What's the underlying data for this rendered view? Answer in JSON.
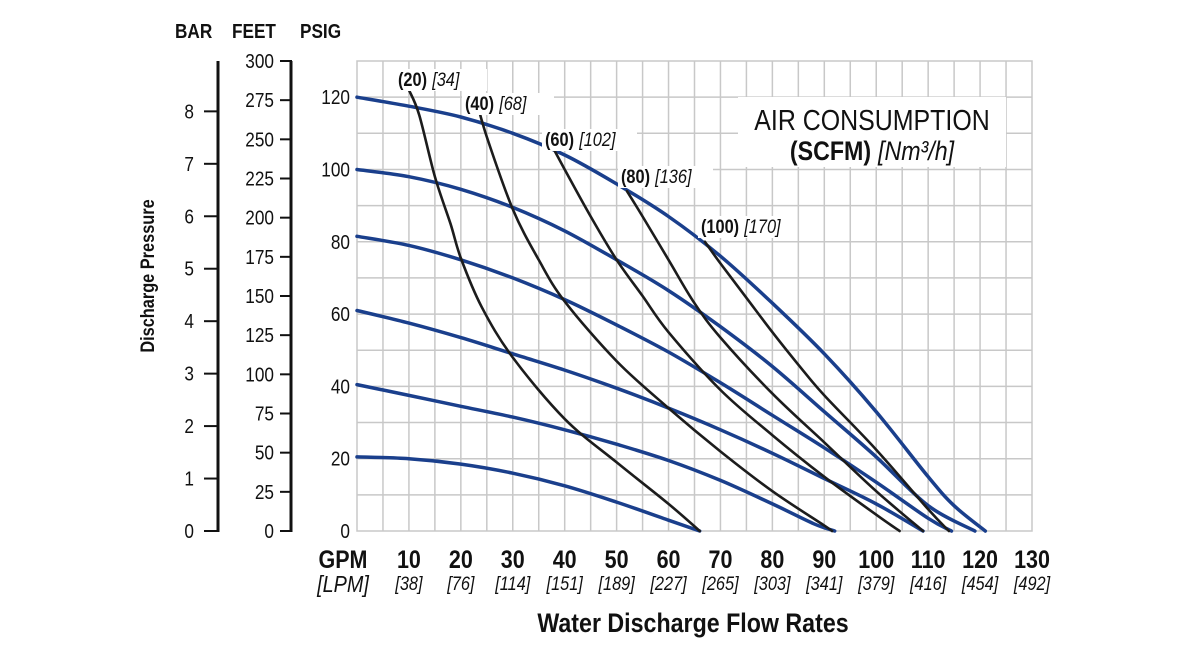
{
  "chart_data": {
    "type": "line",
    "title": "",
    "xlabel": "Water Discharge Flow Rates",
    "ylabel": "Discharge Pressure",
    "x_unit_primary": "GPM",
    "x_unit_secondary": "[LPM]",
    "x_ticks_gpm": [
      "10",
      "20",
      "30",
      "40",
      "50",
      "60",
      "70",
      "80",
      "90",
      "100",
      "110",
      "120",
      "130"
    ],
    "x_ticks_lpm": [
      "[38]",
      "[76]",
      "[114]",
      "[151]",
      "[189]",
      "[227]",
      "[265]",
      "[303]",
      "[341]",
      "[379]",
      "[416]",
      "[454]",
      "[492]"
    ],
    "xlim": [
      0,
      130
    ],
    "psig_axis": {
      "label": "PSIG",
      "ticks": [
        "0",
        "20",
        "40",
        "60",
        "80",
        "100",
        "120"
      ],
      "range": [
        0,
        130
      ]
    },
    "feet_axis": {
      "label": "FEET",
      "ticks": [
        "0",
        "25",
        "50",
        "75",
        "100",
        "125",
        "150",
        "175",
        "200",
        "225",
        "250",
        "275",
        "300"
      ],
      "range": [
        0,
        300
      ]
    },
    "bar_axis": {
      "label": "BAR",
      "ticks": [
        "0",
        "1",
        "2",
        "3",
        "4",
        "5",
        "6",
        "7",
        "8"
      ],
      "range": [
        0,
        8.96
      ]
    },
    "legend": {
      "line1": "AIR CONSUMPTION",
      "line2_bold": "(SCFM)",
      "line2_italic": "[Nm³/h]",
      "placement": "top-right"
    },
    "pressure_curves": [
      {
        "name": "120 psig",
        "x": [
          0,
          10,
          20,
          30,
          40,
          50,
          60,
          70,
          80,
          90,
          100,
          110,
          115,
          121
        ],
        "y": [
          120,
          117.5,
          114.5,
          110,
          104,
          96,
          87,
          76,
          63,
          49,
          33,
          15,
          7,
          0
        ]
      },
      {
        "name": "100 psig",
        "x": [
          0,
          10,
          20,
          30,
          40,
          50,
          60,
          70,
          80,
          90,
          100,
          110,
          119
        ],
        "y": [
          100,
          98,
          94.5,
          89.5,
          83,
          75,
          66.5,
          56.5,
          45.5,
          33,
          20.5,
          7,
          0
        ]
      },
      {
        "name": "80 psig",
        "x": [
          0,
          10,
          20,
          30,
          40,
          50,
          60,
          70,
          80,
          90,
          100,
          110,
          114.5
        ],
        "y": [
          81.5,
          79,
          75,
          70,
          64,
          57,
          49.5,
          41,
          32,
          23,
          13.5,
          3.5,
          0
        ]
      },
      {
        "name": "60 psig",
        "x": [
          0,
          10,
          20,
          30,
          40,
          50,
          60,
          70,
          80,
          90,
          100,
          109
        ],
        "y": [
          61,
          57.5,
          53.5,
          49,
          44.5,
          39.5,
          34,
          28,
          21.5,
          14.5,
          7.5,
          0
        ]
      },
      {
        "name": "40 psig",
        "x": [
          0,
          10,
          20,
          30,
          40,
          50,
          60,
          70,
          80,
          88,
          92
        ],
        "y": [
          40.5,
          37.5,
          34.5,
          31.5,
          28,
          24,
          19.5,
          14,
          7.5,
          2,
          0
        ]
      },
      {
        "name": "20 psig",
        "x": [
          0,
          10,
          20,
          30,
          40,
          50,
          60,
          66
        ],
        "y": [
          20.5,
          20,
          18.5,
          16,
          12.5,
          8,
          3,
          0
        ]
      }
    ],
    "air_curves": [
      {
        "label_bold": "(20)",
        "label_italic": "[34]",
        "x": [
          10,
          12,
          15,
          18,
          20,
          24,
          30,
          40,
          50,
          60,
          66
        ],
        "y": [
          122,
          115,
          98,
          85,
          75.5,
          62,
          48,
          31,
          19,
          7.5,
          0
        ]
      },
      {
        "label_bold": "(40)",
        "label_italic": "[68]",
        "x": [
          23,
          25,
          30,
          35,
          40,
          50,
          60,
          70,
          80,
          90,
          91.5
        ],
        "y": [
          119,
          109,
          89,
          75,
          63.5,
          47,
          34,
          22,
          11,
          1.5,
          0
        ]
      },
      {
        "label_bold": "(60)",
        "label_italic": "[102]",
        "x": [
          37,
          40,
          45,
          50,
          55,
          60,
          70,
          80,
          90,
          100,
          104.5
        ],
        "y": [
          108,
          100,
          87,
          75,
          65,
          55,
          39,
          26.5,
          15,
          4.5,
          0
        ]
      },
      {
        "label_bold": "(80)",
        "label_italic": "[136]",
        "x": [
          52,
          55,
          60,
          65,
          70,
          80,
          90,
          100,
          109
        ],
        "y": [
          94,
          87,
          75,
          63,
          53.5,
          38,
          24.5,
          11,
          0
        ]
      },
      {
        "label_bold": "(100)",
        "label_italic": "[170]",
        "x": [
          67,
          70,
          75,
          80,
          85,
          90,
          100,
          110,
          114
        ],
        "y": [
          80,
          74,
          64.5,
          55,
          46,
          37.5,
          22.5,
          6,
          0
        ]
      }
    ],
    "colors": {
      "pressure_curve": "#1a3f8c",
      "air_curve": "#1c1c1c",
      "grid": "#c8c8c8",
      "axis": "#111111"
    }
  }
}
